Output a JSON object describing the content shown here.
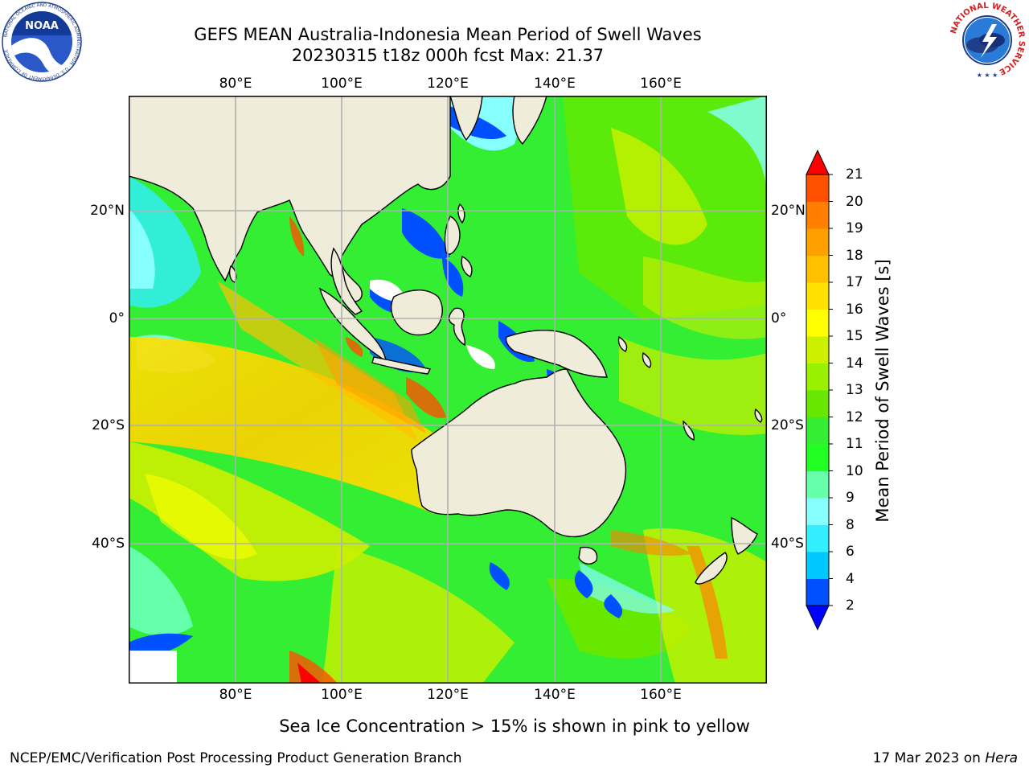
{
  "title_line1": "GEFS MEAN Australia-Indonesia Mean Period of Swell Waves",
  "title_line2": "20230315 t18z 000h fcst   Max: 21.37",
  "lon_labels": [
    "80°E",
    "100°E",
    "120°E",
    "140°E",
    "160°E"
  ],
  "lat_labels": [
    "20°N",
    "0°",
    "20°S",
    "40°S"
  ],
  "map": {
    "lon_range": [
      60,
      180
    ],
    "lat_range": [
      -68,
      42
    ],
    "grid_lons": [
      80,
      100,
      120,
      140,
      160
    ],
    "grid_lats": [
      20,
      0,
      -20,
      -40
    ],
    "land_color": "#efecda",
    "grid_color": "#b0b0b0"
  },
  "colorbar": {
    "label": "Mean Period of Swell Waves [s]",
    "levels": [
      2,
      4,
      6,
      8,
      9,
      10,
      11,
      12,
      13,
      14,
      15,
      16,
      17,
      18,
      19,
      20,
      21
    ],
    "tick_labels": [
      "2",
      "4",
      "6",
      "8",
      "9",
      "10",
      "11",
      "12",
      "13",
      "14",
      "15",
      "16",
      "17",
      "18",
      "19",
      "20",
      "21"
    ],
    "colors": [
      "#0050ff",
      "#00c8ff",
      "#33eeff",
      "#88ffff",
      "#66ffaa",
      "#22ff22",
      "#33ee33",
      "#66e800",
      "#99f000",
      "#ccf000",
      "#ffff00",
      "#ffe000",
      "#ffc000",
      "#ffa000",
      "#ff8000",
      "#ff5000"
    ],
    "under_color": "#0000ff",
    "over_color": "#ff0000"
  },
  "note": "Sea Ice Concentration > 15% is shown in pink to yellow",
  "footer_left": "NCEP/EMC/Verification Post Processing Product Generation Branch",
  "footer_right_date": "17 Mar 2023 on ",
  "footer_right_host": "Hera",
  "logos": {
    "left_icon": "noaa-logo-icon",
    "left_text": "NOAA",
    "left_ring_text": "NATIONAL OCEANIC AND ATMOSPHERIC ADMINISTRATION · U.S. DEPARTMENT OF COMMERCE",
    "right_icon": "nws-logo-icon",
    "right_ring_text": "NATIONAL WEATHER SERVICE"
  }
}
